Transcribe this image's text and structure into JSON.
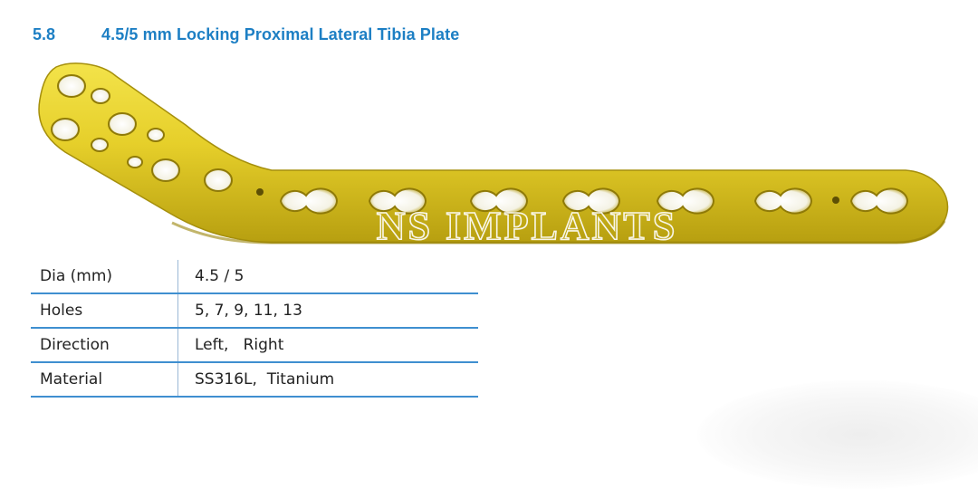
{
  "section": {
    "number": "5.8",
    "title": "4.5/5 mm Locking Proximal Lateral Tibia Plate"
  },
  "image": {
    "watermark": "NS IMPLANTS",
    "plate_color": "#e6cf2a"
  },
  "specs": {
    "rows": [
      {
        "label": "Dia (mm)",
        "value": "4.5 / 5"
      },
      {
        "label": "Holes",
        "value": "5, 7, 9, 11, 13"
      },
      {
        "label": "Direction",
        "value": "Left,   Right"
      },
      {
        "label": "Material",
        "value": "SS316L,  Titanium"
      }
    ]
  },
  "colors": {
    "heading": "#1d7fc4",
    "table_rule": "#3f8fd0"
  }
}
